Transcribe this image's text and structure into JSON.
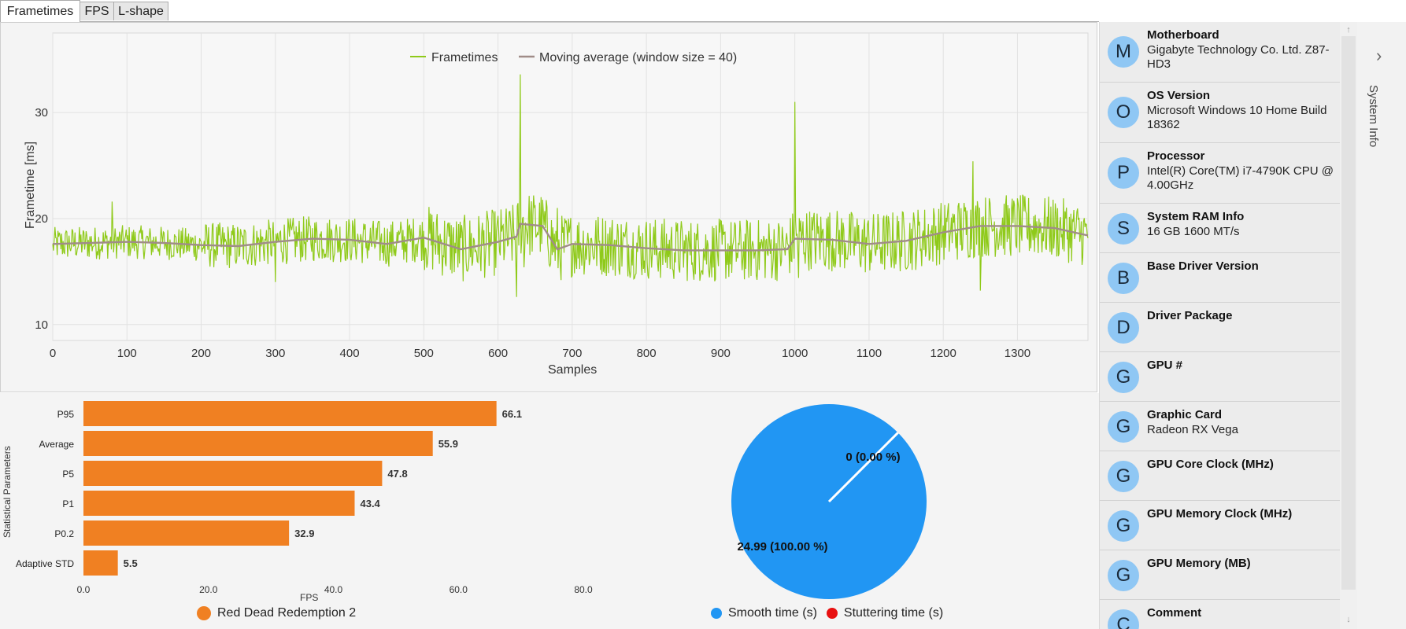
{
  "tabs": [
    {
      "label": "Frametimes",
      "active": true
    },
    {
      "label": "FPS",
      "active": false
    },
    {
      "label": "L-shape",
      "active": false
    }
  ],
  "frametime_chart": {
    "legend_frametimes": "Frametimes",
    "legend_moving_average": "Moving average (window size = 40)",
    "ylabel": "Frametime [ms]",
    "xlabel": "Samples",
    "x_ticks": [
      "0",
      "100",
      "200",
      "300",
      "400",
      "500",
      "600",
      "700",
      "800",
      "900",
      "1000",
      "1100",
      "1200",
      "1300"
    ],
    "y_ticks": [
      "10",
      "20",
      "30"
    ],
    "colors": {
      "frametimes": "#8fca1a",
      "moving_average": "#a08c88"
    }
  },
  "chart_data": [
    {
      "type": "line",
      "title": "",
      "xlabel": "Samples",
      "ylabel": "Frametime [ms]",
      "xlim": [
        0,
        1395
      ],
      "ylim": [
        8.5,
        37.5
      ],
      "grid": true,
      "legend": "top-center",
      "series": [
        {
          "name": "Moving average (window size = 40)",
          "x": [
            0,
            50,
            100,
            150,
            200,
            250,
            300,
            350,
            400,
            450,
            500,
            550,
            600,
            625,
            630,
            660,
            680,
            700,
            750,
            800,
            850,
            900,
            950,
            990,
            1000,
            1050,
            1100,
            1150,
            1200,
            1250,
            1300,
            1350,
            1395
          ],
          "values": [
            17.6,
            17.7,
            17.8,
            17.7,
            17.5,
            17.4,
            17.8,
            18.1,
            18.0,
            17.6,
            18.2,
            17.1,
            17.8,
            18.3,
            19.5,
            19.3,
            17.1,
            17.6,
            17.5,
            17.2,
            17.0,
            17.0,
            17.0,
            17.1,
            18.1,
            18.0,
            17.6,
            17.9,
            18.7,
            19.3,
            19.3,
            19.1,
            18.4
          ]
        },
        {
          "name": "Frametimes",
          "x": [
            0,
            80,
            300,
            625,
            630,
            635,
            680,
            995,
            1000,
            1005,
            1240,
            1250
          ],
          "values": [
            17.6,
            21.6,
            14.0,
            12.6,
            33.6,
            15.4,
            21.0,
            16.0,
            31.0,
            14.4,
            25.4,
            13.2
          ],
          "spike_notes": []
        }
      ]
    },
    {
      "type": "bar",
      "title": "",
      "xlabel": "FPS",
      "ylabel": "Statistical Parameters",
      "xlim": [
        0,
        80
      ],
      "categories": [
        "P95",
        "Average",
        "P5",
        "P1",
        "P0.2",
        "Adaptive STD"
      ],
      "series": [
        {
          "name": "Red Dead Redemption 2",
          "values": [
            66.1,
            55.9,
            47.8,
            43.4,
            32.9,
            5.5
          ]
        }
      ],
      "x_ticks": [
        "0.0",
        "20.0",
        "40.0",
        "60.0",
        "80.0"
      ],
      "value_labels": [
        "66.1",
        "55.9",
        "47.8",
        "43.4",
        "32.9",
        "5.5"
      ],
      "legend": "bottom",
      "color": "#f08022"
    },
    {
      "type": "pie",
      "labels": [
        "Smooth time (s)",
        "Stuttering time (s)"
      ],
      "values": [
        24.99,
        0
      ],
      "slice_labels": [
        "24.99 (100.00 %)",
        "0 (0.00 %)"
      ],
      "colors": [
        "#2196f3",
        "#e81010"
      ],
      "legend": "bottom"
    }
  ],
  "bar_legend": {
    "label": "Red Dead Redemption 2",
    "color": "#f08022"
  },
  "pie_legend": {
    "smooth_label": "Smooth time (s)",
    "smooth_color": "#2196f3",
    "stutter_label": "Stuttering time (s)",
    "stutter_color": "#e81010"
  },
  "sidebar": {
    "items": [
      {
        "initial": "M",
        "title": "Motherboard",
        "value": "Gigabyte Technology Co. Ltd. Z87-HD3"
      },
      {
        "initial": "O",
        "title": "OS Version",
        "value": "Microsoft Windows 10 Home Build 18362"
      },
      {
        "initial": "P",
        "title": "Processor",
        "value": "Intel(R) Core(TM) i7-4790K CPU @ 4.00GHz"
      },
      {
        "initial": "S",
        "title": "System RAM Info",
        "value": "16 GB 1600 MT/s"
      },
      {
        "initial": "B",
        "title": "Base Driver Version",
        "value": ""
      },
      {
        "initial": "D",
        "title": "Driver Package",
        "value": ""
      },
      {
        "initial": "G",
        "title": "GPU #",
        "value": ""
      },
      {
        "initial": "G",
        "title": "Graphic Card",
        "value": "Radeon RX Vega"
      },
      {
        "initial": "G",
        "title": "GPU Core Clock (MHz)",
        "value": ""
      },
      {
        "initial": "G",
        "title": "GPU Memory Clock (MHz)",
        "value": ""
      },
      {
        "initial": "G",
        "title": "GPU Memory (MB)",
        "value": ""
      },
      {
        "initial": "C",
        "title": "Comment",
        "value": ""
      }
    ],
    "panel_label": "System Info",
    "expand_glyph": "›",
    "scroll_up_glyph": "↑",
    "scroll_down_glyph": "↓"
  }
}
